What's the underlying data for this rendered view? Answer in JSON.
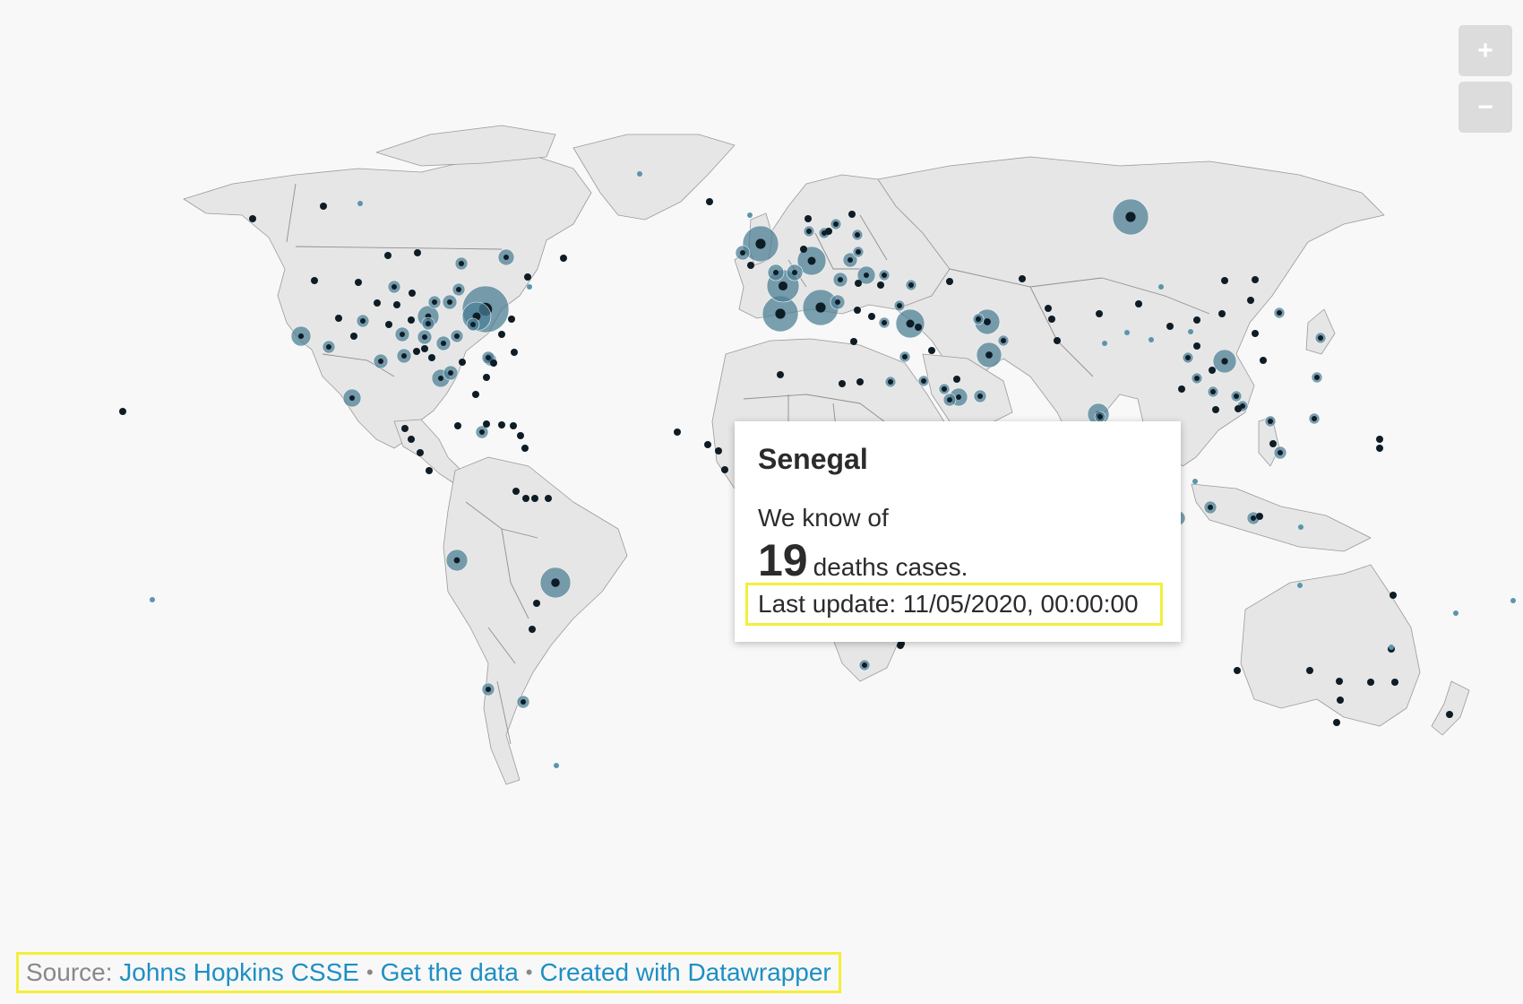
{
  "map": {
    "zoom_in_label": "+",
    "zoom_out_label": "−",
    "colors": {
      "land": "#e6e6e6",
      "bubble": "#4a7e94",
      "bubble_center": "#0e1c26",
      "highlight_box": "#f3ef3a"
    }
  },
  "tooltip": {
    "country": "Senegal",
    "intro": "We know of",
    "count": "19",
    "unit": "deaths cases.",
    "last_update": "Last update: 11/05/2020, 00:00:00"
  },
  "footer": {
    "source_label": "Source:",
    "source_link": "Johns Hopkins CSSE",
    "separator": "•",
    "data_link": "Get the data",
    "credit_link": "Created with Datawrapper"
  }
}
